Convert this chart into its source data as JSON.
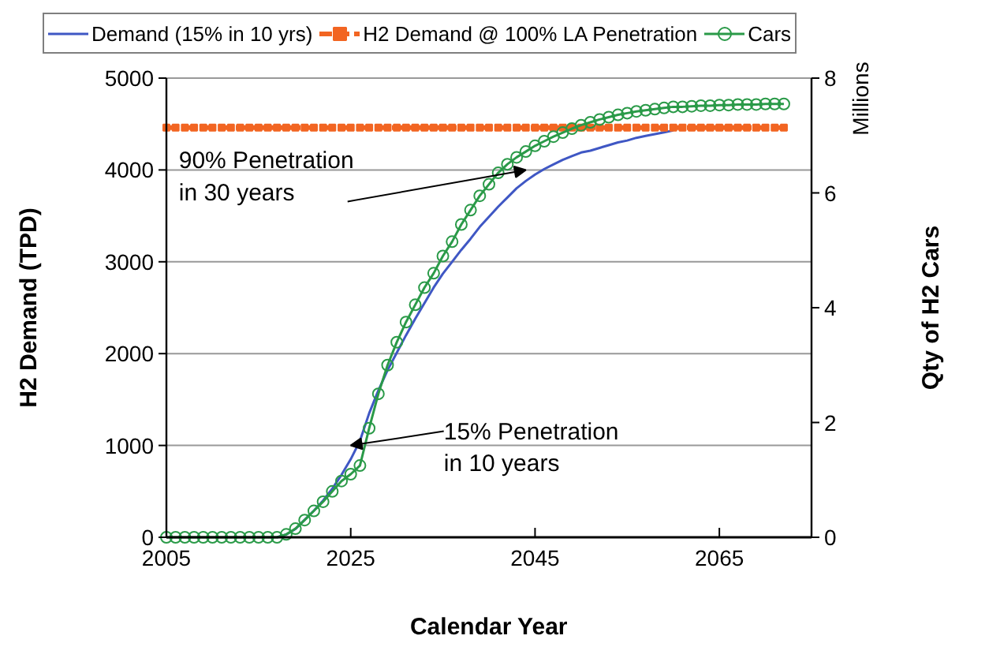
{
  "chart_data": {
    "type": "line",
    "xlabel": "Calendar Year",
    "ylabel": "H2 Demand (TPD)",
    "y2label": "Qty of H2 Cars",
    "x": [
      2005,
      2006,
      2007,
      2008,
      2009,
      2010,
      2011,
      2012,
      2013,
      2014,
      2015,
      2016,
      2017,
      2018,
      2019,
      2020,
      2021,
      2022,
      2023,
      2024,
      2025,
      2026,
      2027,
      2028,
      2029,
      2030,
      2031,
      2032,
      2033,
      2034,
      2035,
      2036,
      2037,
      2038,
      2039,
      2040,
      2041,
      2042,
      2043,
      2044,
      2045,
      2046,
      2047,
      2048,
      2049,
      2050,
      2051,
      2052,
      2053,
      2054,
      2055,
      2056,
      2057,
      2058,
      2059,
      2060,
      2061,
      2062,
      2063,
      2064,
      2065,
      2066,
      2067,
      2068,
      2069,
      2070,
      2071,
      2072
    ],
    "series": [
      {
        "name": "Demand (15% in 10 yrs)",
        "color": "#3f57c4",
        "marker": "none",
        "line_style": "solid",
        "values": [
          null,
          null,
          null,
          null,
          null,
          null,
          null,
          null,
          null,
          null,
          null,
          null,
          0,
          30,
          90,
          190,
          290,
          400,
          530,
          680,
          850,
          1050,
          1350,
          1600,
          1820,
          2010,
          2200,
          2380,
          2550,
          2720,
          2870,
          3000,
          3130,
          3250,
          3380,
          3490,
          3600,
          3700,
          3800,
          3880,
          3950,
          4010,
          4060,
          4110,
          4150,
          4190,
          4210,
          4240,
          4270,
          4300,
          4320,
          4350,
          4370,
          4390,
          4410,
          4430,
          null,
          null,
          null,
          null,
          null,
          null,
          null,
          null,
          null,
          null,
          null,
          null
        ]
      },
      {
        "name": "H2 Demand @ 100% LA Penetration",
        "color": "#f26522",
        "marker": "square",
        "line_style": "dashed",
        "values": [
          4460,
          4460,
          4460,
          4460,
          4460,
          4460,
          4460,
          4460,
          4460,
          4460,
          4460,
          4460,
          4460,
          4460,
          4460,
          4460,
          4460,
          4460,
          4460,
          4460,
          4460,
          4460,
          4460,
          4460,
          4460,
          4460,
          4460,
          4460,
          4460,
          4460,
          4460,
          4460,
          4460,
          4460,
          4460,
          4460,
          4460,
          4460,
          4460,
          4460,
          4460,
          4460,
          4460,
          4460,
          4460,
          4460,
          4460,
          4460,
          4460,
          4460,
          4460,
          4460,
          4460,
          4460,
          4460,
          4460,
          4460,
          4460,
          4460,
          4460,
          4460,
          4460,
          4460,
          4460,
          4460,
          4460,
          4460,
          4460
        ]
      },
      {
        "name": "Cars",
        "color": "#2a9a48",
        "marker": "circle",
        "line_style": "solid",
        "axis": "y2",
        "values": [
          0,
          0,
          0,
          0,
          0,
          0,
          0,
          0,
          0,
          0,
          0,
          0,
          0,
          0.05,
          0.15,
          0.3,
          0.46,
          0.62,
          0.8,
          0.98,
          1.1,
          1.25,
          1.9,
          2.5,
          3.0,
          3.4,
          3.75,
          4.05,
          4.35,
          4.6,
          4.9,
          5.15,
          5.45,
          5.7,
          5.95,
          6.15,
          6.35,
          6.5,
          6.62,
          6.72,
          6.82,
          6.9,
          6.98,
          7.05,
          7.12,
          7.18,
          7.23,
          7.28,
          7.32,
          7.36,
          7.39,
          7.42,
          7.44,
          7.46,
          7.48,
          7.5,
          7.5,
          7.51,
          7.52,
          7.52,
          7.53,
          7.53,
          7.54,
          7.54,
          7.54,
          7.55,
          7.55,
          7.55
        ]
      }
    ],
    "xlim": [
      2005,
      2075
    ],
    "xticks": [
      2005,
      2025,
      2045,
      2065
    ],
    "ylim": [
      0,
      5000
    ],
    "yticks": [
      0,
      1000,
      2000,
      3000,
      4000,
      5000
    ],
    "y2lim": [
      0,
      8
    ],
    "y2ticks": [
      0,
      2,
      4,
      6,
      8
    ],
    "grid": "y",
    "legend": "top",
    "annotations": [
      {
        "text": "90% Penetration\nin 30 years",
        "x": 2044,
        "y": 4000
      },
      {
        "text": "15% Penetration\nin 10 years",
        "x": 2025,
        "y": 1000
      },
      "Millions"
    ]
  }
}
